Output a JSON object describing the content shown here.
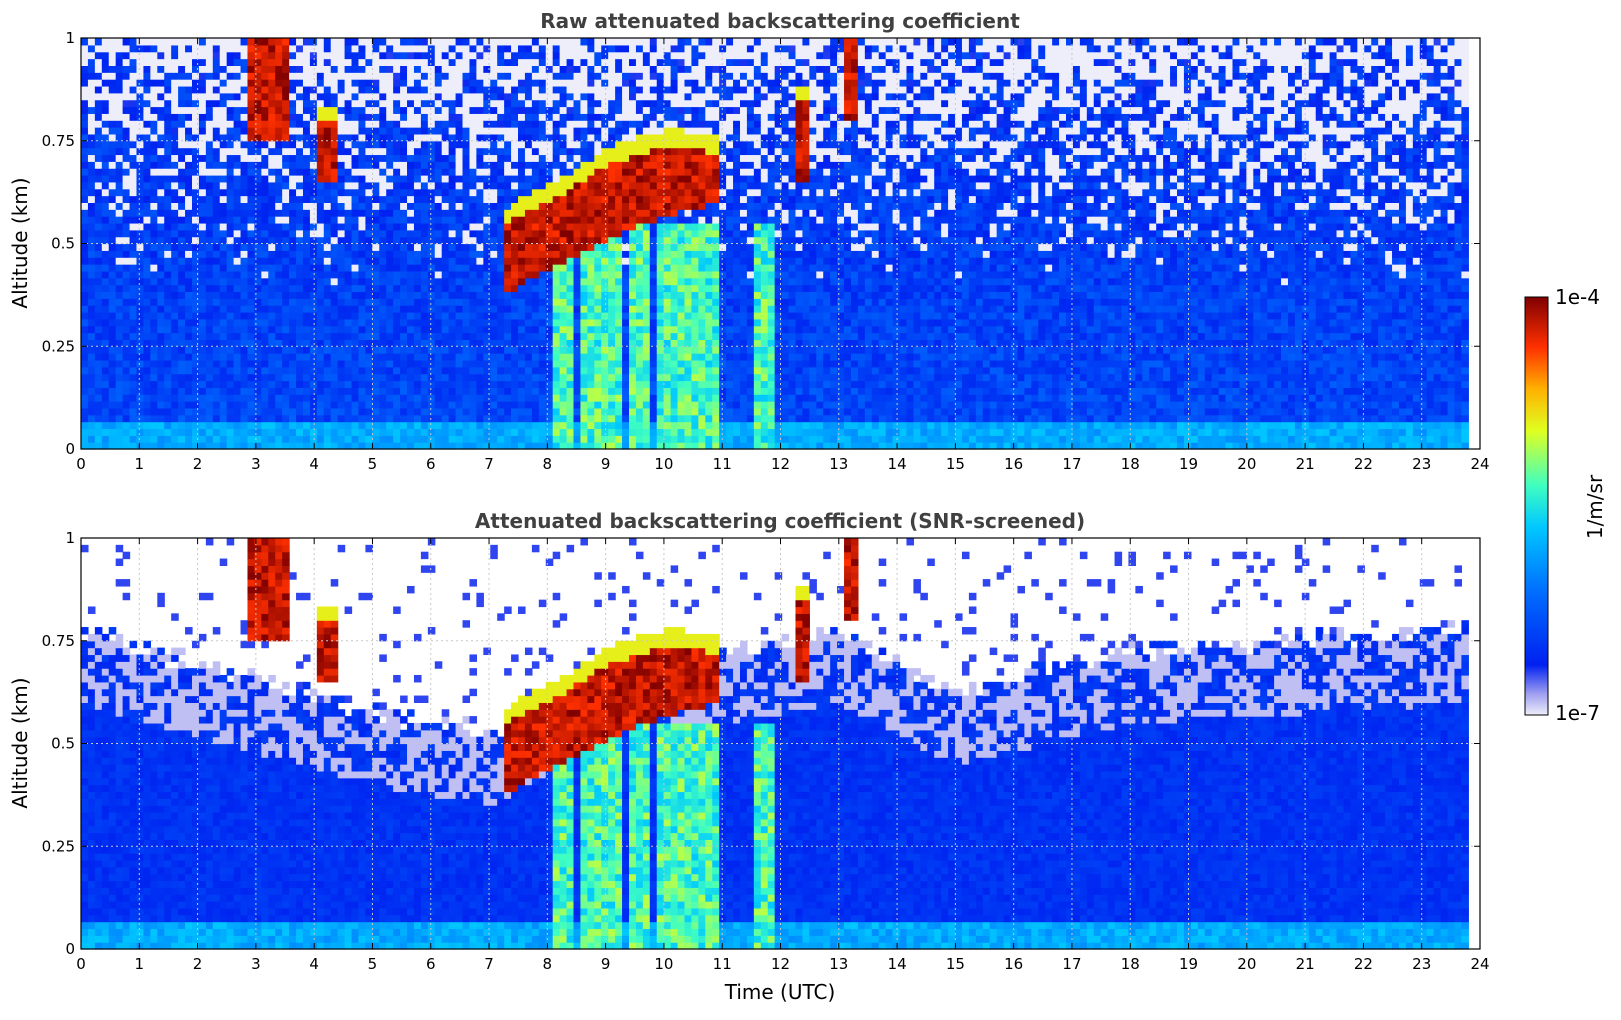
{
  "chart_data": [
    {
      "type": "heatmap",
      "title": "Raw attenuated backscattering coefficient",
      "ylabel": "Altitude (km)",
      "xlabel": "",
      "xlim": [
        0,
        24
      ],
      "ylim": [
        0,
        1
      ],
      "x_ticks": [
        "0",
        "1",
        "2",
        "3",
        "4",
        "5",
        "6",
        "7",
        "8",
        "9",
        "10",
        "11",
        "12",
        "13",
        "14",
        "15",
        "16",
        "17",
        "18",
        "19",
        "20",
        "21",
        "22",
        "23",
        "24"
      ],
      "y_ticks": [
        "0",
        "0.25",
        "0.5",
        "0.75",
        "1"
      ],
      "grid": true,
      "colormap": "jet",
      "data_time_range_utc": [
        0,
        23.8
      ],
      "cloud_layers": [
        {
          "t_start": 7.3,
          "t_end": 11.0,
          "base_km": [
            0.38,
            0.45,
            0.52,
            0.57,
            0.6
          ],
          "top_km": [
            0.55,
            0.62,
            0.7,
            0.74,
            0.72
          ]
        },
        {
          "t_start": 2.9,
          "t_end": 3.6,
          "base_km": 0.75,
          "top_km": 1.0
        },
        {
          "t_start": 4.1,
          "t_end": 4.4,
          "base_km": 0.65,
          "top_km": 0.8
        },
        {
          "t_start": 12.2,
          "t_end": 12.5,
          "base_km": 0.65,
          "top_km": 0.85
        },
        {
          "t_start": 13.1,
          "t_end": 13.3,
          "base_km": 0.8,
          "top_km": 1.0
        }
      ],
      "precipitation_streaks_utc": [
        8.3,
        8.7,
        9.1,
        9.6,
        10.0,
        10.4,
        10.8,
        11.7
      ]
    },
    {
      "type": "heatmap",
      "title": "Attenuated backscattering coefficient (SNR-screened)",
      "ylabel": "Altitude (km)",
      "xlabel": "Time (UTC)",
      "xlim": [
        0,
        24
      ],
      "ylim": [
        0,
        1
      ],
      "x_ticks": [
        "0",
        "1",
        "2",
        "3",
        "4",
        "5",
        "6",
        "7",
        "8",
        "9",
        "10",
        "11",
        "12",
        "13",
        "14",
        "15",
        "16",
        "17",
        "18",
        "19",
        "20",
        "21",
        "22",
        "23",
        "24"
      ],
      "y_ticks": [
        "0",
        "0.25",
        "0.5",
        "0.75",
        "1"
      ],
      "grid": true,
      "colormap": "jet",
      "data_time_range_utc": [
        0,
        23.8
      ],
      "screened_top_km": [
        0.75,
        0.55,
        0.5,
        0.65,
        0.75,
        0.6,
        0.7,
        0.75
      ],
      "screened_top_times_utc": [
        0,
        5,
        7,
        9,
        13,
        15,
        18,
        23.8
      ]
    }
  ],
  "colorbar": {
    "label": "1/m/sr",
    "max_label": "1e-4",
    "min_label": "1e-7",
    "scale": "log",
    "colors": [
      "#eeeefb",
      "#0020f0",
      "#00a0ff",
      "#20ffe0",
      "#ffff00",
      "#ff6000",
      "#800000"
    ]
  }
}
